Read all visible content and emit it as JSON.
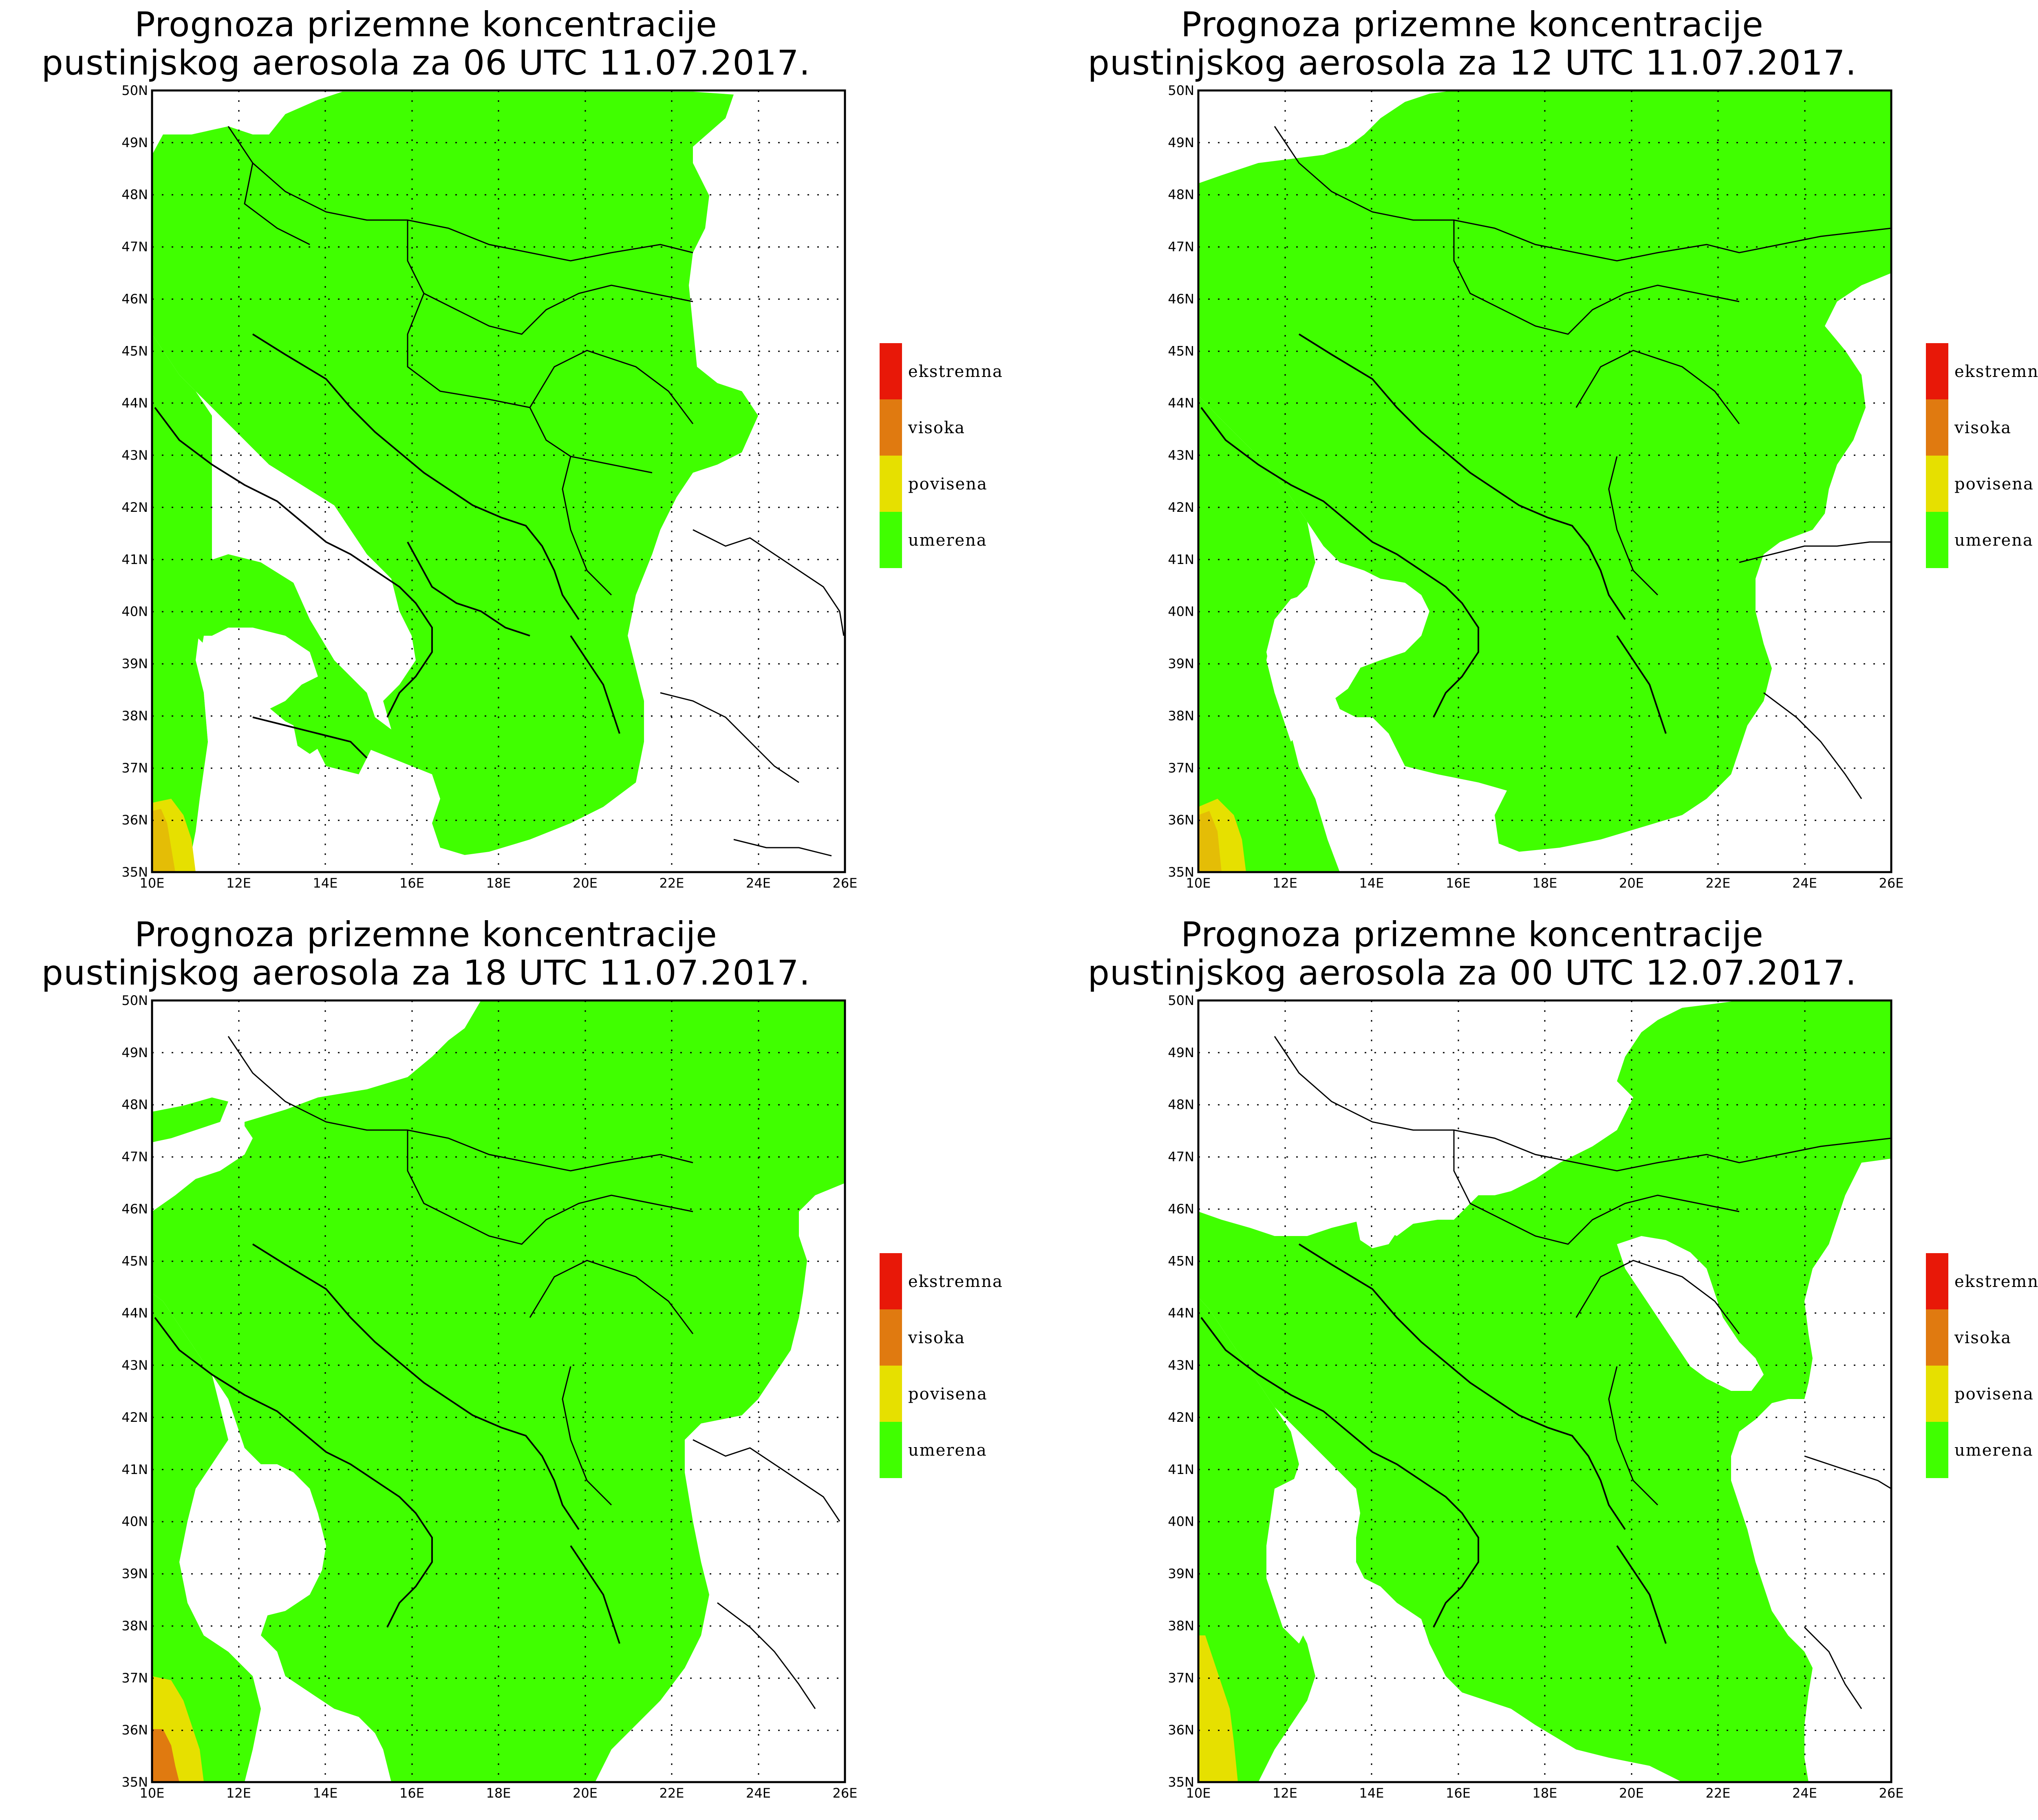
{
  "title_prefix": "Prognoza prizemne koncentracije",
  "colors": {
    "umerena": "#40ff00",
    "povisena": "#e6e000",
    "visoka": "#e07a10",
    "ekstremna": "#e81808",
    "coast": "#000000",
    "background": "#ffffff"
  },
  "axes": {
    "lon_ticks": [
      "10E",
      "12E",
      "14E",
      "16E",
      "18E",
      "20E",
      "22E",
      "24E",
      "26E"
    ],
    "lat_ticks": [
      "35N",
      "36N",
      "37N",
      "38N",
      "39N",
      "40N",
      "41N",
      "42N",
      "43N",
      "44N",
      "45N",
      "46N",
      "47N",
      "48N",
      "49N",
      "50N"
    ],
    "lon_range": [
      10,
      26
    ],
    "lat_range": [
      35,
      50
    ],
    "grid": "dotted"
  },
  "legend": {
    "items": [
      {
        "label": "ekstremna",
        "color": "#e81808"
      },
      {
        "label": "visoka",
        "color": "#e07a10"
      },
      {
        "label": "povisena",
        "color": "#e6e000"
      },
      {
        "label": "umerena",
        "color": "#40ff00"
      }
    ]
  },
  "panels": [
    {
      "title_line2": "pustinjskog aerosola za 06 UTC 11.07.2017."
    },
    {
      "title_line2": "pustinjskog aerosola za 12 UTC 11.07.2017."
    },
    {
      "title_line2": "pustinjskog aerosola za 18 UTC 11.07.2017."
    },
    {
      "title_line2": "pustinjskog aerosola za 00 UTC 12.07.2017."
    }
  ]
}
